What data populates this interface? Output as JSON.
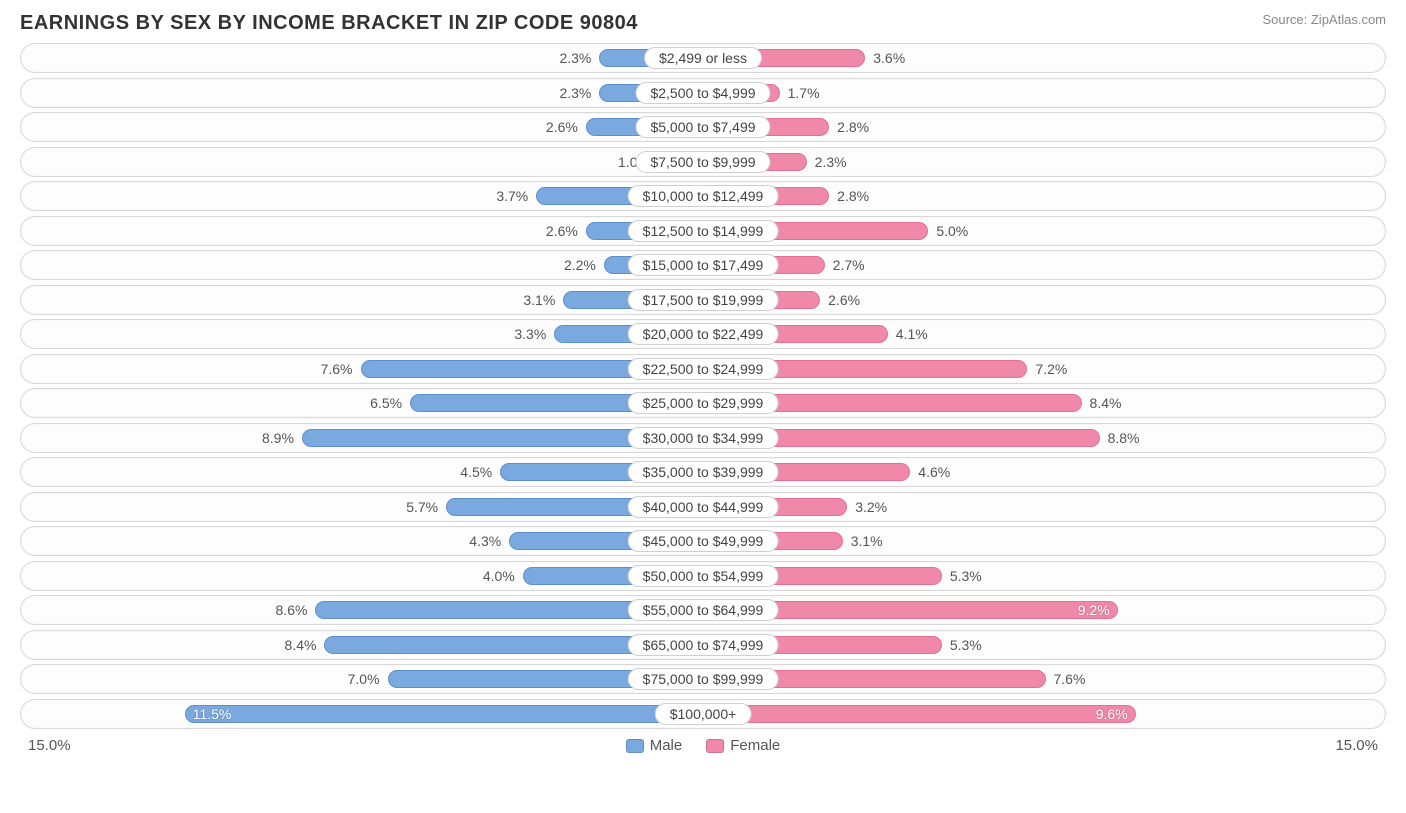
{
  "title": "EARNINGS BY SEX BY INCOME BRACKET IN ZIP CODE 90804",
  "source": "Source: ZipAtlas.com",
  "chart": {
    "type": "diverging-bar",
    "axis_max_pct": 15.0,
    "axis_label_left": "15.0%",
    "axis_label_right": "15.0%",
    "male_color": "#7aa9e0",
    "male_border": "#5e8fc9",
    "female_color": "#f089a9",
    "female_border": "#e46f93",
    "row_bg": "#fdfdfd",
    "row_border": "#d8d8d8",
    "label_fontsize": 14,
    "title_fontsize": 20,
    "inside_threshold_pct": 9.0,
    "legend": {
      "male": "Male",
      "female": "Female"
    },
    "rows": [
      {
        "bracket": "$2,499 or less",
        "male": 2.3,
        "female": 3.6
      },
      {
        "bracket": "$2,500 to $4,999",
        "male": 2.3,
        "female": 1.7
      },
      {
        "bracket": "$5,000 to $7,499",
        "male": 2.6,
        "female": 2.8
      },
      {
        "bracket": "$7,500 to $9,999",
        "male": 1.0,
        "female": 2.3
      },
      {
        "bracket": "$10,000 to $12,499",
        "male": 3.7,
        "female": 2.8
      },
      {
        "bracket": "$12,500 to $14,999",
        "male": 2.6,
        "female": 5.0
      },
      {
        "bracket": "$15,000 to $17,499",
        "male": 2.2,
        "female": 2.7
      },
      {
        "bracket": "$17,500 to $19,999",
        "male": 3.1,
        "female": 2.6
      },
      {
        "bracket": "$20,000 to $22,499",
        "male": 3.3,
        "female": 4.1
      },
      {
        "bracket": "$22,500 to $24,999",
        "male": 7.6,
        "female": 7.2
      },
      {
        "bracket": "$25,000 to $29,999",
        "male": 6.5,
        "female": 8.4
      },
      {
        "bracket": "$30,000 to $34,999",
        "male": 8.9,
        "female": 8.8
      },
      {
        "bracket": "$35,000 to $39,999",
        "male": 4.5,
        "female": 4.6
      },
      {
        "bracket": "$40,000 to $44,999",
        "male": 5.7,
        "female": 3.2
      },
      {
        "bracket": "$45,000 to $49,999",
        "male": 4.3,
        "female": 3.1
      },
      {
        "bracket": "$50,000 to $54,999",
        "male": 4.0,
        "female": 5.3
      },
      {
        "bracket": "$55,000 to $64,999",
        "male": 8.6,
        "female": 9.2
      },
      {
        "bracket": "$65,000 to $74,999",
        "male": 8.4,
        "female": 5.3
      },
      {
        "bracket": "$75,000 to $99,999",
        "male": 7.0,
        "female": 7.6
      },
      {
        "bracket": "$100,000+",
        "male": 11.5,
        "female": 9.6
      }
    ]
  }
}
